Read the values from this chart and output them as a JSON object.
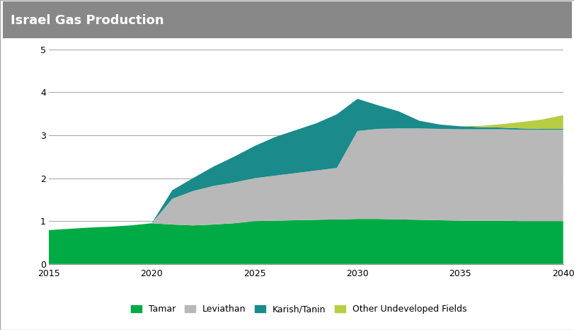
{
  "title": "Israel Gas Production",
  "title_bg_color": "#888888",
  "title_text_color": "#ffffff",
  "bg_color": "#ffffff",
  "plot_bg_color": "#ffffff",
  "grid_color": "#aaaaaa",
  "border_color": "#aaaaaa",
  "ylim": [
    0,
    5
  ],
  "yticks": [
    0,
    1,
    2,
    3,
    4,
    5
  ],
  "xlim": [
    2015,
    2040
  ],
  "xticks": [
    2015,
    2020,
    2025,
    2030,
    2035,
    2040
  ],
  "years": [
    2015,
    2016,
    2017,
    2018,
    2019,
    2020,
    2021,
    2022,
    2023,
    2024,
    2025,
    2026,
    2027,
    2028,
    2029,
    2030,
    2031,
    2032,
    2033,
    2034,
    2035,
    2036,
    2037,
    2038,
    2039,
    2040
  ],
  "tamar": [
    0.79,
    0.82,
    0.85,
    0.87,
    0.9,
    0.95,
    0.92,
    0.9,
    0.92,
    0.95,
    1.0,
    1.01,
    1.02,
    1.03,
    1.04,
    1.05,
    1.05,
    1.04,
    1.03,
    1.02,
    1.01,
    1.01,
    1.01,
    1.0,
    1.0,
    1.0
  ],
  "leviathan": [
    0.0,
    0.0,
    0.0,
    0.0,
    0.0,
    0.0,
    0.6,
    0.8,
    0.9,
    0.95,
    1.0,
    1.05,
    1.1,
    1.15,
    1.2,
    2.05,
    2.1,
    2.12,
    2.13,
    2.13,
    2.13,
    2.13,
    2.13,
    2.13,
    2.13,
    2.13
  ],
  "karish_tanin": [
    0.0,
    0.0,
    0.0,
    0.0,
    0.0,
    0.0,
    0.2,
    0.3,
    0.45,
    0.6,
    0.75,
    0.9,
    1.0,
    1.1,
    1.25,
    0.75,
    0.55,
    0.4,
    0.18,
    0.1,
    0.07,
    0.05,
    0.04,
    0.03,
    0.02,
    0.02
  ],
  "other": [
    0.0,
    0.0,
    0.0,
    0.0,
    0.0,
    0.0,
    0.0,
    0.0,
    0.0,
    0.0,
    0.0,
    0.0,
    0.0,
    0.0,
    0.0,
    0.0,
    0.0,
    0.0,
    0.0,
    0.0,
    0.0,
    0.03,
    0.08,
    0.15,
    0.22,
    0.32
  ],
  "tamar_color": "#00aa44",
  "leviathan_color": "#b8b8b8",
  "karish_color": "#1a8a8a",
  "other_color": "#b8cc44",
  "legend_labels": [
    "Tamar",
    "Leviathan",
    "Karish/Tanin",
    "Other Undeveloped Fields"
  ]
}
